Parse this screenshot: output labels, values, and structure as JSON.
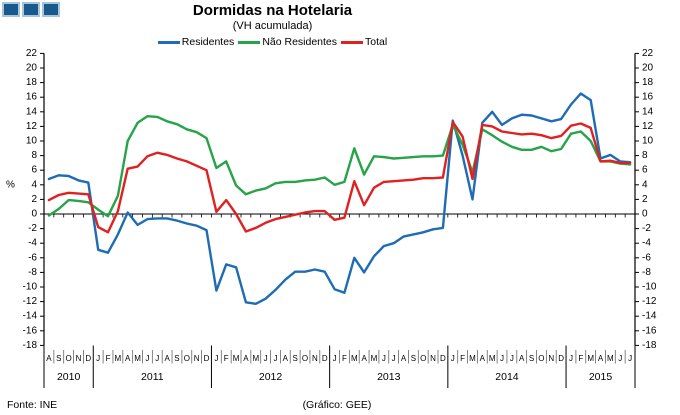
{
  "logo": {
    "squares": 3
  },
  "header": {
    "title": "Dormidas na Hotelaria",
    "subtitle": "(VH acumulada)"
  },
  "legend": [
    {
      "label": "Residentes",
      "color": "#1e6cb5"
    },
    {
      "label": "Não Residentes",
      "color": "#27a348"
    },
    {
      "label": "Total",
      "color": "#e02122"
    }
  ],
  "footer": {
    "source": "Fonte: INE",
    "credit": "(Gráfico: GEE)"
  },
  "chart_data": {
    "type": "line",
    "title": "Dormidas na Hotelaria",
    "subtitle": "(VH acumulada)",
    "ylabel": "%",
    "ylim": [
      -18,
      22
    ],
    "y_tick_step": 2,
    "grid": false,
    "legend_position": "top",
    "categories": [
      "A",
      "S",
      "O",
      "N",
      "D",
      "J",
      "F",
      "M",
      "A",
      "M",
      "J",
      "J",
      "A",
      "S",
      "O",
      "N",
      "D",
      "J",
      "F",
      "M",
      "A",
      "M",
      "J",
      "J",
      "A",
      "S",
      "O",
      "N",
      "D",
      "J",
      "F",
      "M",
      "A",
      "M",
      "J",
      "J",
      "A",
      "S",
      "O",
      "N",
      "D",
      "J",
      "F",
      "M",
      "A",
      "M",
      "J",
      "J",
      "A",
      "S",
      "O",
      "N",
      "D",
      "J",
      "F",
      "M",
      "A",
      "M",
      "J",
      "J"
    ],
    "years": [
      {
        "label": "2010",
        "months": 5
      },
      {
        "label": "2011",
        "months": 12
      },
      {
        "label": "2012",
        "months": 12
      },
      {
        "label": "2013",
        "months": 12
      },
      {
        "label": "2014",
        "months": 12
      },
      {
        "label": "2015",
        "months": 7
      }
    ],
    "series": [
      {
        "name": "Residentes",
        "color": "#1e6cb5",
        "values": [
          4.8,
          5.3,
          5.2,
          4.6,
          4.3,
          -4.9,
          -5.3,
          -2.8,
          0.2,
          -1.5,
          -0.7,
          -0.6,
          -0.6,
          -0.9,
          -1.3,
          -1.6,
          -2.2,
          -10.5,
          -6.9,
          -7.3,
          -12.1,
          -12.3,
          -11.6,
          -10.4,
          -9.0,
          -7.9,
          -7.9,
          -7.6,
          -7.9,
          -10.3,
          -10.8,
          -6.0,
          -8.0,
          -5.8,
          -4.4,
          -4.0,
          -3.1,
          -2.8,
          -2.5,
          -2.1,
          -1.9,
          12.8,
          8.0,
          2.0,
          12.5,
          14.0,
          12.2,
          13.1,
          13.6,
          13.5,
          13.1,
          12.7,
          13.0,
          15.0,
          16.5,
          15.6,
          7.6,
          8.1,
          7.2,
          7.1
        ]
      },
      {
        "name": "Não Residentes",
        "color": "#27a348",
        "values": [
          -0.2,
          0.7,
          1.9,
          1.8,
          1.6,
          0.6,
          -0.3,
          2.5,
          10.0,
          12.5,
          13.4,
          13.3,
          12.7,
          12.3,
          11.6,
          11.2,
          10.4,
          6.3,
          7.2,
          3.9,
          2.7,
          3.2,
          3.5,
          4.2,
          4.4,
          4.4,
          4.6,
          4.7,
          5.0,
          4.0,
          4.4,
          9.0,
          5.4,
          7.9,
          7.8,
          7.6,
          7.7,
          7.8,
          7.9,
          7.9,
          8.0,
          12.2,
          9.5,
          5.7,
          11.6,
          10.8,
          9.9,
          9.2,
          8.8,
          8.8,
          9.2,
          8.6,
          8.9,
          11.0,
          11.3,
          10.0,
          7.2,
          7.2,
          6.9,
          6.8
        ]
      },
      {
        "name": "Total",
        "color": "#e02122",
        "values": [
          1.9,
          2.6,
          2.9,
          2.8,
          2.7,
          -1.8,
          -2.5,
          0.4,
          6.2,
          6.5,
          7.9,
          8.4,
          8.1,
          7.6,
          7.2,
          6.6,
          6.0,
          0.3,
          1.9,
          0.0,
          -2.4,
          -1.9,
          -1.2,
          -0.7,
          -0.4,
          -0.1,
          0.2,
          0.4,
          0.4,
          -0.8,
          -0.5,
          4.5,
          1.2,
          3.6,
          4.4,
          4.5,
          4.6,
          4.7,
          4.9,
          4.9,
          5.0,
          12.6,
          10.6,
          4.8,
          12.2,
          12.0,
          11.3,
          11.1,
          10.9,
          11.0,
          10.8,
          10.4,
          10.7,
          12.1,
          12.4,
          11.8,
          7.2,
          7.3,
          7.0,
          7.0
        ]
      }
    ]
  }
}
